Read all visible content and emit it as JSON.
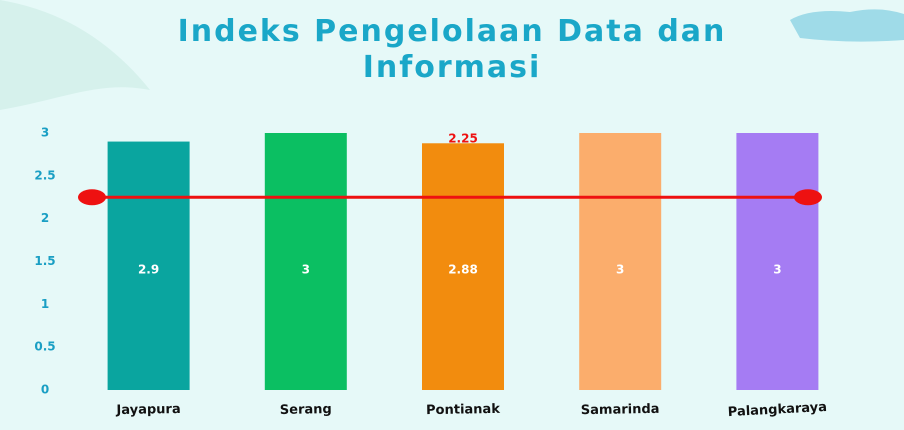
{
  "chart_data": {
    "type": "bar",
    "title": "Indeks Pengelolaan Data dan Informasi",
    "categories": [
      "Jayapura",
      "Serang",
      "Pontianak",
      "Samarinda",
      "Palangkaraya"
    ],
    "values": [
      2.9,
      3,
      2.88,
      3,
      3
    ],
    "value_labels": [
      "2.9",
      "3",
      "2.88",
      "3",
      "3"
    ],
    "colors": [
      "#0aa59f",
      "#0bbf62",
      "#f28c0e",
      "#fbad6c",
      "#a57cf3"
    ],
    "ylim": [
      0,
      3
    ],
    "yticks": [
      0,
      0.5,
      1,
      1.5,
      2,
      2.5,
      3
    ],
    "reference_line": {
      "value": 2.25,
      "color": "#ee1111"
    }
  }
}
